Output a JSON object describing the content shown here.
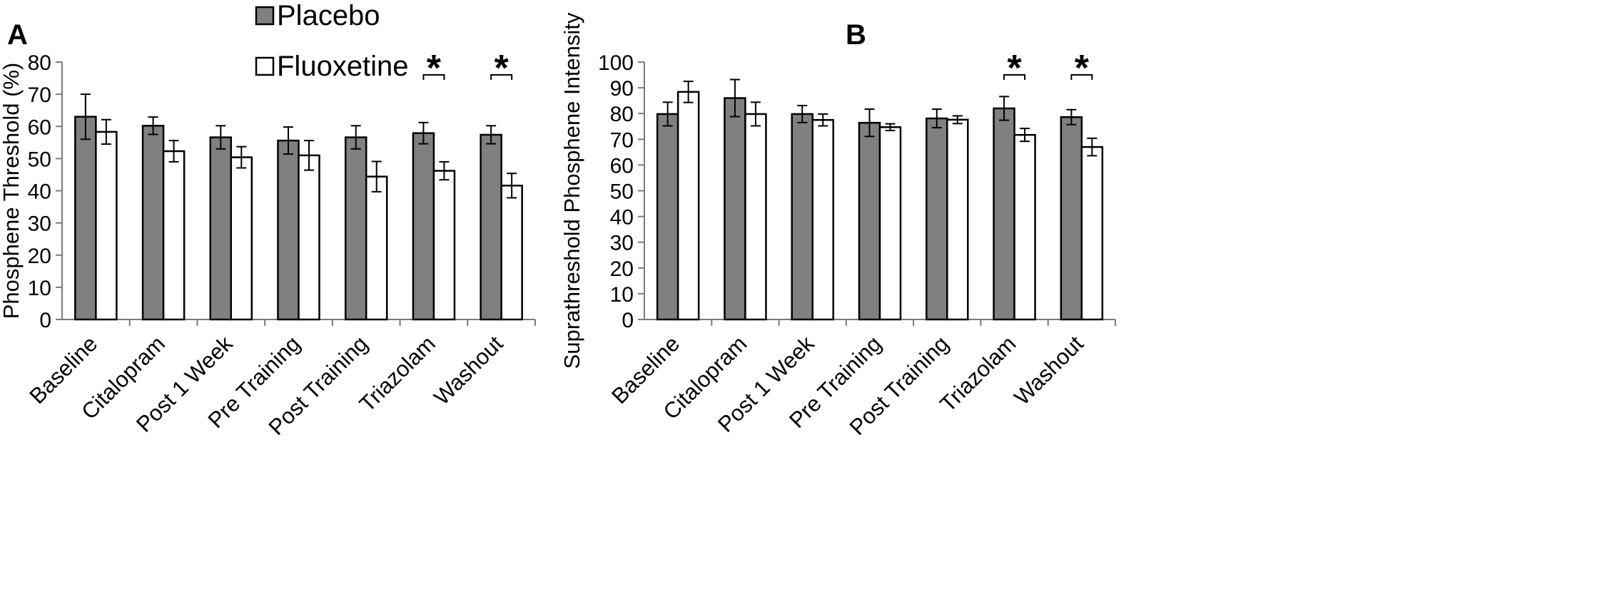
{
  "chart_data": [
    {
      "type": "bar",
      "panel_label": "A",
      "ylabel": "Phosphene Threshold (%)",
      "xlabel": "",
      "ylim": [
        0,
        80
      ],
      "yticks": [
        0,
        10,
        20,
        30,
        40,
        50,
        60,
        70,
        80
      ],
      "categories": [
        "Baseline",
        "Citalopram",
        "Post 1 Week",
        "Pre Training",
        "Post Training",
        "Triazolam",
        "Washout"
      ],
      "series": [
        {
          "name": "Placebo",
          "values": [
            63.0,
            60.2,
            56.6,
            55.6,
            56.6,
            57.9,
            57.4
          ],
          "errors": [
            7.0,
            2.7,
            3.6,
            4.2,
            3.6,
            3.3,
            2.8
          ]
        },
        {
          "name": "Fluoxetine",
          "values": [
            58.3,
            52.3,
            50.4,
            51.0,
            44.4,
            46.2,
            41.6
          ],
          "errors": [
            3.8,
            3.3,
            3.3,
            4.6,
            4.7,
            2.8,
            3.8
          ]
        }
      ],
      "significance": [
        {
          "category": "Triazolam",
          "label": "*"
        },
        {
          "category": "Washout",
          "label": "*"
        }
      ]
    },
    {
      "type": "bar",
      "panel_label": "B",
      "ylabel": "Suprathreshold Phosphene Intensity",
      "xlabel": "",
      "ylim": [
        0,
        100
      ],
      "yticks": [
        0,
        10,
        20,
        30,
        40,
        50,
        60,
        70,
        80,
        90,
        100
      ],
      "categories": [
        "Baseline",
        "Citalopram",
        "Post 1 Week",
        "Pre Training",
        "Post Training",
        "Triazolam",
        "Washout"
      ],
      "series": [
        {
          "name": "Placebo",
          "values": [
            79.8,
            86.0,
            79.8,
            76.4,
            78.1,
            82.0,
            78.6
          ],
          "errors": [
            4.6,
            7.2,
            3.3,
            5.3,
            3.6,
            4.6,
            2.9
          ]
        },
        {
          "name": "Fluoxetine",
          "values": [
            88.4,
            79.8,
            77.5,
            74.7,
            77.6,
            71.7,
            67.0
          ],
          "errors": [
            4.1,
            4.6,
            2.3,
            1.3,
            1.5,
            2.5,
            3.4
          ]
        }
      ],
      "significance": [
        {
          "category": "Triazolam",
          "label": "*"
        },
        {
          "category": "Washout",
          "label": "*"
        }
      ]
    }
  ],
  "legend": {
    "placement": "top-center",
    "items": [
      {
        "label": "Placebo",
        "color": "#808080"
      },
      {
        "label": "Fluoxetine",
        "color": "#ffffff"
      }
    ]
  },
  "colors": {
    "placebo": "#808080",
    "fluoxetine": "#ffffff",
    "axis": "#7a7a7a",
    "outline": "#000000"
  }
}
